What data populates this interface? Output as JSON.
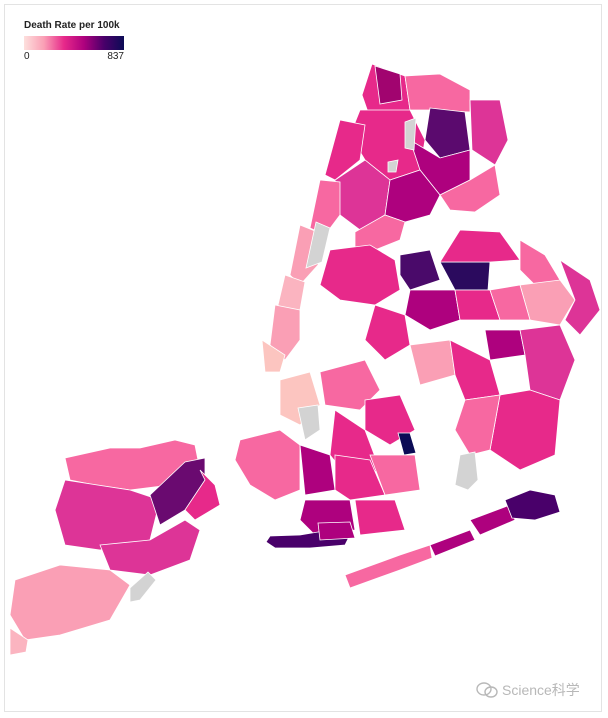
{
  "legend": {
    "title": "Death Rate per 100k",
    "min_label": "0",
    "max_label": "837"
  },
  "watermark": {
    "text": "Science科学",
    "icon": "chat-bubble-icon"
  },
  "colors": {
    "no_data": "#d3d3d3",
    "scale": [
      "#fde0dd",
      "#fa9fb5",
      "#e7298a",
      "#ae017e",
      "#49006a",
      "#0b0b55"
    ]
  },
  "map_data": {
    "type": "choropleth",
    "region": "New York City ZIP codes",
    "value_range": [
      0,
      837
    ],
    "regions": [
      {
        "name": "staten-island-north",
        "value": 250
      },
      {
        "name": "staten-island-mid",
        "value": 330
      },
      {
        "name": "staten-island-east",
        "value": 650
      },
      {
        "name": "staten-island-south",
        "value": 160
      },
      {
        "name": "bronx-northwest",
        "value": 600
      },
      {
        "name": "bronx-north-east",
        "value": 720
      },
      {
        "name": "bronx-central",
        "value": 400
      },
      {
        "name": "manhattan-upper",
        "value": 280
      },
      {
        "name": "manhattan-lower",
        "value": 150
      },
      {
        "name": "queens-north",
        "value": 760
      },
      {
        "name": "queens-central",
        "value": 450
      },
      {
        "name": "queens-east",
        "value": 260
      },
      {
        "name": "brooklyn-north",
        "value": 330
      },
      {
        "name": "brooklyn-central",
        "value": 420
      },
      {
        "name": "brooklyn-south",
        "value": 700
      },
      {
        "name": "rockaway",
        "value": 690
      },
      {
        "name": "jfk-airport",
        "value": null
      }
    ]
  }
}
